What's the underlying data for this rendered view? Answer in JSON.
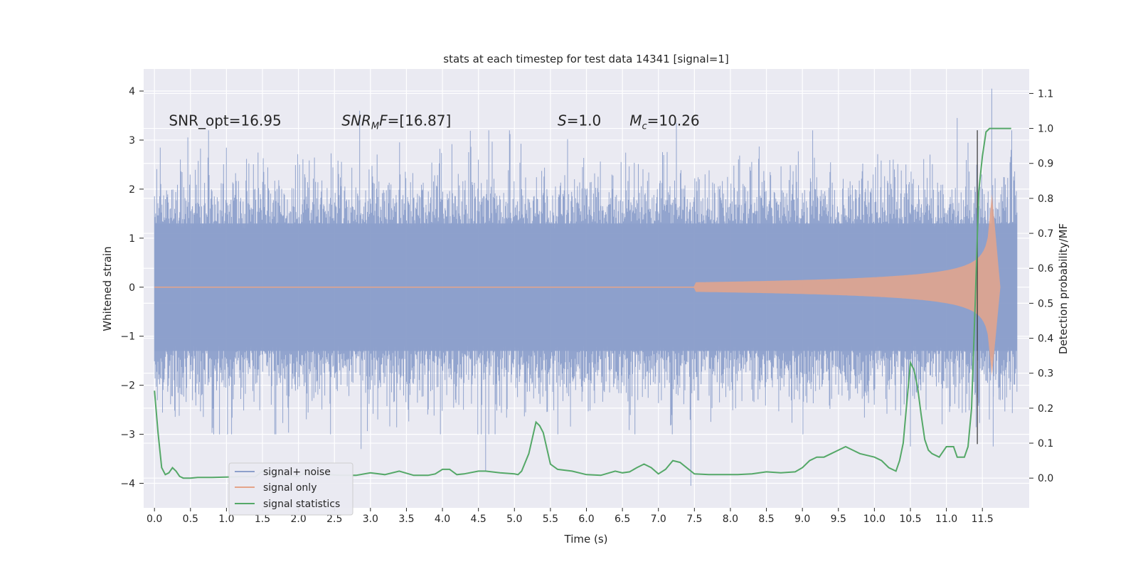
{
  "chart_data": {
    "type": "line",
    "title": "stats at each timestep for test data 14341 [signal=1]",
    "xlabel": "Time (s)",
    "ylabel_left": "Whitened strain",
    "ylabel_right": "Detection probability/MF",
    "xlim": [
      -0.15,
      12.15
    ],
    "ylim_left": [
      -4.5,
      4.45
    ],
    "ylim_right": [
      -0.085,
      1.17
    ],
    "x_ticks": [
      "0.0",
      "0.5",
      "1.0",
      "1.5",
      "2.0",
      "2.5",
      "3.0",
      "3.5",
      "4.0",
      "4.5",
      "5.0",
      "5.5",
      "6.0",
      "6.5",
      "7.0",
      "7.5",
      "8.0",
      "8.5",
      "9.0",
      "9.5",
      "10.0",
      "10.5",
      "11.0",
      "11.5"
    ],
    "y_ticks_left": [
      "4",
      "3",
      "2",
      "1",
      "0",
      "−1",
      "−2",
      "−3",
      "−4"
    ],
    "y_ticks_right": [
      "1.1",
      "1.0",
      "0.9",
      "0.8",
      "0.7",
      "0.6",
      "0.5",
      "0.4",
      "0.3",
      "0.2",
      "0.1",
      "0.0"
    ],
    "grid": true,
    "legend_position": "lower-left",
    "annotations": [
      {
        "text": "SNR_opt=16.95",
        "x": 0.2,
        "y": 3.3
      },
      {
        "text": "SNR_MF=[16.87]",
        "x": 2.6,
        "y": 3.3
      },
      {
        "text": "S=1.0",
        "x": 5.6,
        "y": 3.3
      },
      {
        "text": "M_c=10.26",
        "x": 6.6,
        "y": 3.3
      }
    ],
    "vline_x": 11.43,
    "noise": {
      "name": "signal+ noise",
      "color": "#8da0cb",
      "x_range": [
        0,
        11.98
      ],
      "envelope_typical": 1.3,
      "peaks": [
        {
          "x": 2.85,
          "y": 3.6
        },
        {
          "x": 7.25,
          "y": 3.35
        },
        {
          "x": 11.15,
          "y": 3.45
        },
        {
          "x": 11.63,
          "y": 4.05
        },
        {
          "x": 4.6,
          "y": -3.75
        },
        {
          "x": 7.45,
          "y": -4.05
        },
        {
          "x": 2.87,
          "y": -3.3
        },
        {
          "x": 10.5,
          "y": -3.25
        },
        {
          "x": 11.65,
          "y": -3.25
        }
      ]
    },
    "signal": {
      "name": "signal only",
      "color": "#e5a48a",
      "start_x": 7.5,
      "merger_x": 11.62,
      "peak_amp": 2.1,
      "end_x": 11.75
    },
    "series": [
      {
        "name": "signal statistics",
        "color": "#55a868",
        "axis": "right",
        "x": [
          0.0,
          0.05,
          0.1,
          0.15,
          0.2,
          0.25,
          0.3,
          0.35,
          0.4,
          0.5,
          0.6,
          0.7,
          0.8,
          1.0,
          1.2,
          1.4,
          1.5,
          1.6,
          1.7,
          1.8,
          2.0,
          2.1,
          2.2,
          2.3,
          2.4,
          2.6,
          2.8,
          3.0,
          3.2,
          3.4,
          3.6,
          3.8,
          3.9,
          4.0,
          4.1,
          4.2,
          4.3,
          4.5,
          4.6,
          4.8,
          5.0,
          5.05,
          5.1,
          5.2,
          5.3,
          5.35,
          5.4,
          5.5,
          5.6,
          5.8,
          6.0,
          6.2,
          6.4,
          6.5,
          6.6,
          6.7,
          6.8,
          6.9,
          7.0,
          7.1,
          7.2,
          7.3,
          7.5,
          7.7,
          7.9,
          8.1,
          8.3,
          8.5,
          8.7,
          8.9,
          9.0,
          9.1,
          9.2,
          9.3,
          9.4,
          9.5,
          9.6,
          9.7,
          9.8,
          10.0,
          10.1,
          10.2,
          10.3,
          10.35,
          10.4,
          10.5,
          10.55,
          10.6,
          10.65,
          10.7,
          10.75,
          10.8,
          10.9,
          11.0,
          11.1,
          11.15,
          11.2,
          11.25,
          11.3,
          11.35,
          11.4,
          11.45,
          11.5,
          11.55,
          11.6,
          11.7,
          11.8,
          11.9
        ],
        "values": [
          0.25,
          0.13,
          0.03,
          0.01,
          0.015,
          0.03,
          0.02,
          0.005,
          0.0,
          0.0,
          0.002,
          0.002,
          0.002,
          0.003,
          0.004,
          0.004,
          0.02,
          0.01,
          0.006,
          0.006,
          0.005,
          0.015,
          0.01,
          0.01,
          0.01,
          0.008,
          0.008,
          0.015,
          0.01,
          0.02,
          0.008,
          0.008,
          0.012,
          0.025,
          0.025,
          0.01,
          0.012,
          0.02,
          0.02,
          0.015,
          0.012,
          0.01,
          0.02,
          0.07,
          0.16,
          0.15,
          0.13,
          0.04,
          0.025,
          0.02,
          0.01,
          0.008,
          0.02,
          0.015,
          0.018,
          0.03,
          0.04,
          0.03,
          0.012,
          0.025,
          0.05,
          0.045,
          0.012,
          0.01,
          0.01,
          0.01,
          0.012,
          0.018,
          0.015,
          0.018,
          0.03,
          0.05,
          0.06,
          0.06,
          0.07,
          0.08,
          0.09,
          0.08,
          0.07,
          0.06,
          0.05,
          0.03,
          0.02,
          0.05,
          0.1,
          0.33,
          0.31,
          0.26,
          0.18,
          0.11,
          0.08,
          0.07,
          0.06,
          0.09,
          0.09,
          0.06,
          0.06,
          0.06,
          0.09,
          0.2,
          0.5,
          0.82,
          0.92,
          0.99,
          1.0,
          1.0,
          1.0,
          1.0
        ]
      }
    ],
    "legend": [
      "signal+ noise",
      "signal only",
      "signal statistics"
    ]
  }
}
